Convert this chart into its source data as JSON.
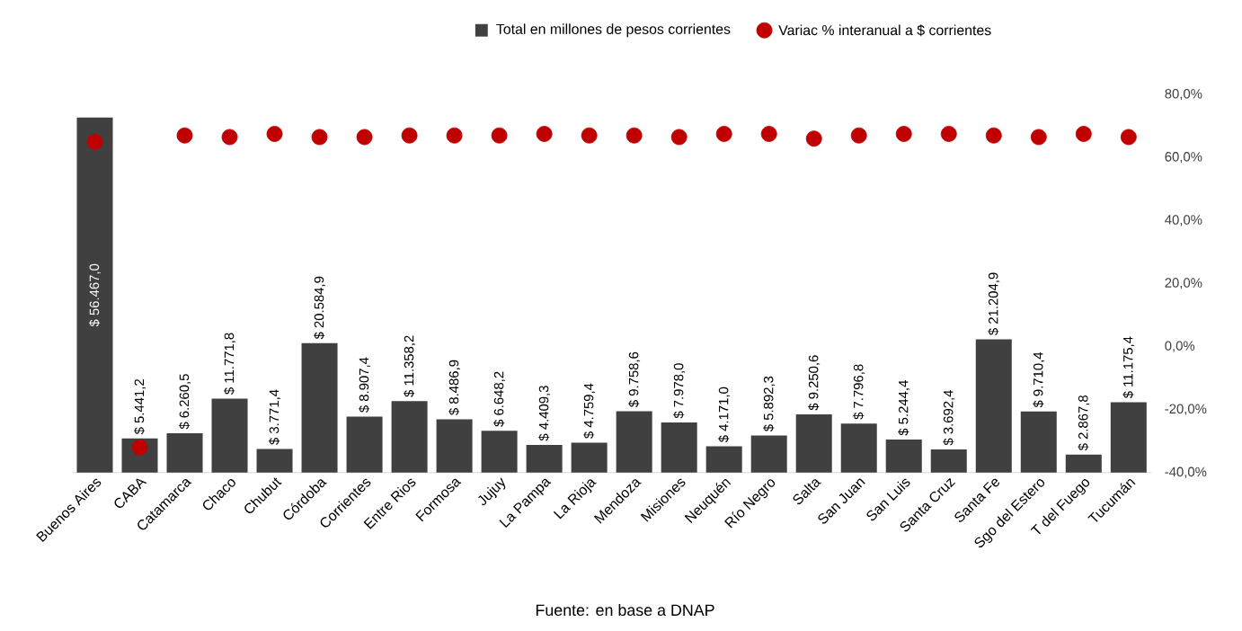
{
  "chart_data": {
    "type": "bar",
    "categories": [
      "Buenos Aires",
      "CABA",
      "Catamarca",
      "Chaco",
      "Chubut",
      "Córdoba",
      "Corrientes",
      "Entre Rios",
      "Formosa",
      "Jujuy",
      "La Pampa",
      "La Rioja",
      "Mendoza",
      "Misiones",
      "Neuquén",
      "Río Negro",
      "Salta",
      "San Juan",
      "San Luis",
      "Santa Cruz",
      "Santa Fe",
      "Sgo del Estero",
      "T del Fuego",
      "Tucumán"
    ],
    "series": [
      {
        "name": "Total en millones de pesos corrientes",
        "color": "#404040",
        "values": [
          56467.0,
          5441.2,
          6260.5,
          11771.8,
          3771.4,
          20584.9,
          8907.4,
          11358.2,
          8486.9,
          6648.2,
          4409.3,
          4759.4,
          9758.6,
          7978.0,
          4171.0,
          5892.3,
          9250.6,
          7796.8,
          5244.4,
          3692.4,
          21204.9,
          9710.4,
          2867.8,
          11175.4
        ],
        "value_labels": [
          "$ 56.467,0",
          "$ 5.441,2",
          "$ 6.260,5",
          "$ 11.771,8",
          "$ 3.771,4",
          "$ 20.584,9",
          "$ 8.907,4",
          "$ 11.358,2",
          "$ 8.486,9",
          "$ 6.648,2",
          "$ 4.409,3",
          "$ 4.759,4",
          "$ 9.758,6",
          "$ 7.978,0",
          "$ 4.171,0",
          "$ 5.892,3",
          "$ 9.250,6",
          "$ 7.796,8",
          "$ 5.244,4",
          "$ 3.692,4",
          "$ 21.204,9",
          "$ 9.710,4",
          "$ 2.867,8",
          "$ 11.175,4"
        ]
      },
      {
        "name": "Variac % interanual a $ corrientes",
        "type": "scatter",
        "axis": "y2",
        "marker": "circle",
        "color": "#c00000",
        "values": [
          65,
          -32,
          67,
          66.5,
          67.5,
          66.5,
          66.5,
          67,
          67,
          67,
          67.5,
          67,
          67,
          66.5,
          67.5,
          67.5,
          66,
          67,
          67.5,
          67.5,
          67,
          66.5,
          67.5,
          66.5
        ]
      }
    ],
    "y2lim": [
      -40,
      80
    ],
    "y2ticks": [
      {
        "value": -40,
        "label": "-40,0%"
      },
      {
        "value": -20,
        "label": "-20,0%"
      },
      {
        "value": 0,
        "label": "0,0%"
      },
      {
        "value": 20,
        "label": "20,0%"
      },
      {
        "value": 40,
        "label": "40,0%"
      },
      {
        "value": 60,
        "label": "60,0%"
      },
      {
        "value": 80,
        "label": "80,0%"
      }
    ],
    "legend": "top",
    "annotations": [
      "Fuente: en base a DNAP"
    ]
  }
}
